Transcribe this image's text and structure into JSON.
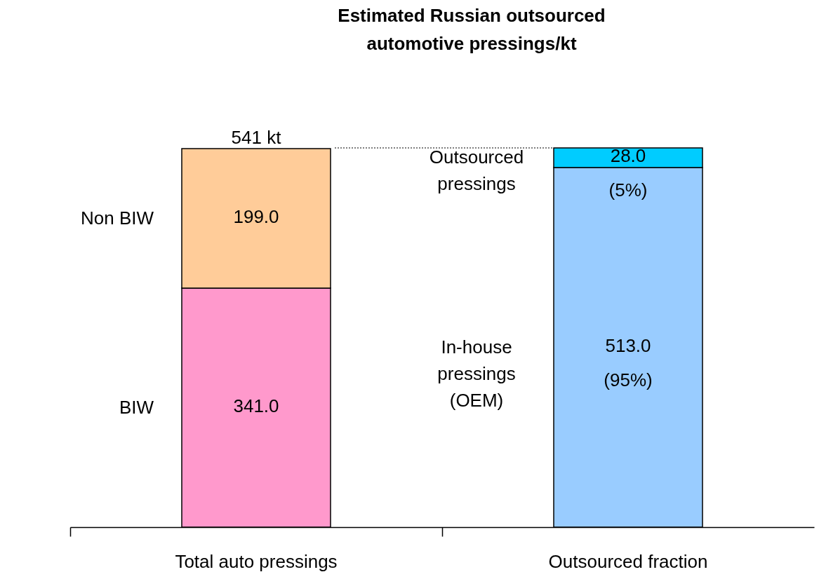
{
  "chart_data": {
    "type": "bar",
    "title": "Estimated Russian outsourced automotive pressings/kt",
    "categories": [
      "Total auto pressings",
      "Outsourced fraction"
    ],
    "stacked": true,
    "series": [
      {
        "name": "BIW",
        "color": "#ff99cc",
        "values": [
          341.0,
          null
        ],
        "value_labels": [
          "341.0",
          null
        ]
      },
      {
        "name": "Non BIW",
        "color": "#ffcc99",
        "values": [
          199.0,
          null
        ],
        "value_labels": [
          "199.0",
          null
        ]
      },
      {
        "name": "In-house pressings (OEM)",
        "color": "#99ccff",
        "values": [
          null,
          513.0
        ],
        "value_labels": [
          null,
          "513.0 (95%)"
        ]
      },
      {
        "name": "Outsourced pressings",
        "color": "#00ccff",
        "values": [
          null,
          28.0
        ],
        "value_labels": [
          null,
          "28.0 (5%)"
        ]
      }
    ],
    "totals": [
      "541 kt",
      null
    ],
    "ref_lines": [
      {
        "axis": "y",
        "value": 541,
        "line_style": "dotted"
      }
    ]
  }
}
